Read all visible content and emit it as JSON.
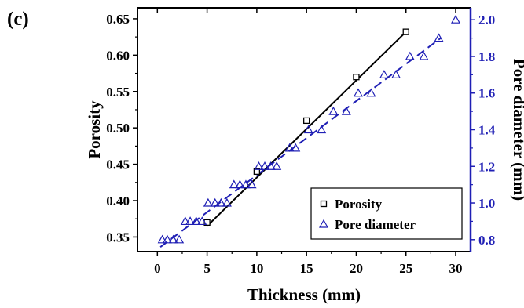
{
  "colors": {
    "left_axis": "#000000",
    "right_axis": "#1f1fb5",
    "porosity_series": "#000000",
    "pore_series": "#1f1fb5"
  },
  "chart_data": {
    "type": "scatter",
    "panel_label": "(c)",
    "xlabel": "Thickness (mm)",
    "ylabel": "Porosity",
    "y2label": "Pore diameter (mm)",
    "xlim": [
      -2,
      31.5
    ],
    "ylim": [
      0.33,
      0.665
    ],
    "y2lim": [
      0.735,
      2.065
    ],
    "xticks": [
      0,
      5,
      10,
      15,
      20,
      25,
      30
    ],
    "yticks": [
      0.35,
      0.4,
      0.45,
      0.5,
      0.55,
      0.6,
      0.65
    ],
    "y2ticks": [
      0.8,
      1.0,
      1.2,
      1.4,
      1.6,
      1.8,
      2.0
    ],
    "grid": false,
    "legend_position": "bottom-right",
    "series": [
      {
        "name": "Porosity",
        "axis": "left",
        "marker": "square",
        "x": [
          5,
          10,
          15,
          20,
          25
        ],
        "y": [
          0.37,
          0.44,
          0.51,
          0.57,
          0.632
        ],
        "fit": {
          "style": "solid",
          "x": [
            5,
            25
          ],
          "y": [
            0.365,
            0.632
          ]
        }
      },
      {
        "name": "Pore diameter",
        "axis": "right",
        "marker": "triangle",
        "x": [
          0.5,
          1.0,
          1.6,
          2.2,
          2.8,
          3.3,
          3.9,
          4.5,
          5.1,
          5.8,
          6.4,
          7.0,
          7.7,
          8.3,
          8.9,
          9.5,
          10.2,
          10.8,
          11.4,
          12.0,
          13.3,
          13.9,
          15.2,
          16.5,
          17.7,
          19.0,
          20.2,
          21.5,
          22.8,
          24.0,
          25.4,
          26.8,
          28.3,
          30.0
        ],
        "y": [
          0.8,
          0.8,
          0.8,
          0.8,
          0.9,
          0.9,
          0.9,
          0.9,
          1.0,
          1.0,
          1.0,
          1.0,
          1.1,
          1.1,
          1.1,
          1.1,
          1.2,
          1.2,
          1.2,
          1.2,
          1.3,
          1.3,
          1.4,
          1.4,
          1.5,
          1.5,
          1.6,
          1.6,
          1.7,
          1.7,
          1.8,
          1.8,
          1.9,
          2.0
        ],
        "fit": {
          "style": "dashed",
          "x": [
            0.3,
            28.5
          ],
          "y": [
            0.76,
            1.9
          ]
        }
      }
    ]
  }
}
